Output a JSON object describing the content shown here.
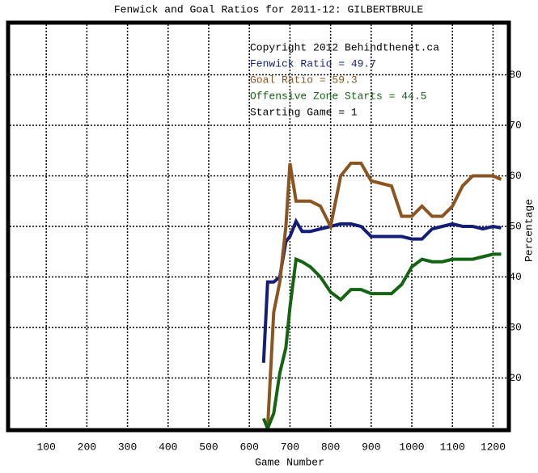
{
  "chart_data": {
    "type": "line",
    "title": "Fenwick and Goal Ratios for 2011-12: GILBERTBRULE",
    "x_label": "Game Number",
    "y_label": "Percentage",
    "annotations": [
      {
        "text": "Copyright 2012 Behindthenet.ca",
        "color": "#000000"
      },
      {
        "text": "Starting Game = 1",
        "color": "#000000"
      }
    ],
    "x": [
      635,
      645,
      660,
      675,
      690,
      700,
      715,
      730,
      750,
      775,
      800,
      825,
      850,
      875,
      900,
      925,
      950,
      975,
      1000,
      1025,
      1050,
      1075,
      1100,
      1125,
      1150,
      1175,
      1200,
      1220
    ],
    "series": [
      {
        "name": "Fenwick Ratio = 49.7",
        "color": "#141e78",
        "values": [
          23,
          39,
          39,
          40,
          47,
          48,
          51,
          49,
          49,
          49.5,
          50,
          50.5,
          50.5,
          50,
          48,
          48,
          48,
          48,
          47.5,
          47.5,
          49.5,
          50,
          50.5,
          50,
          50,
          49.5,
          50,
          49.7
        ]
      },
      {
        "name": "Goal Ratio = 59.3",
        "color": "#8b5522",
        "values": [
          null,
          10,
          33,
          39,
          50,
          62.5,
          55,
          55,
          55,
          54,
          50,
          60,
          62.5,
          62.5,
          59,
          58.5,
          58,
          52,
          52,
          54,
          52,
          52,
          54,
          58,
          60,
          60,
          60,
          59.3
        ]
      },
      {
        "name": "Offensive Zone Starts = 44.5",
        "color": "#146414",
        "values": [
          12,
          10,
          13,
          21,
          26,
          34,
          43.5,
          43,
          42,
          40,
          37,
          35.5,
          37.5,
          37.5,
          36.7,
          36.7,
          36.7,
          38.5,
          42,
          43.5,
          43,
          43,
          43.5,
          43.5,
          43.5,
          44,
          44.5,
          44.5
        ]
      }
    ],
    "xlim": [
      10,
      1235
    ],
    "ylim": [
      10,
      90
    ],
    "xticks": [
      100,
      200,
      300,
      400,
      500,
      600,
      700,
      800,
      900,
      1000,
      1100,
      1200
    ],
    "yticks": [
      20,
      30,
      40,
      50,
      60,
      70,
      80
    ],
    "grid": true
  }
}
